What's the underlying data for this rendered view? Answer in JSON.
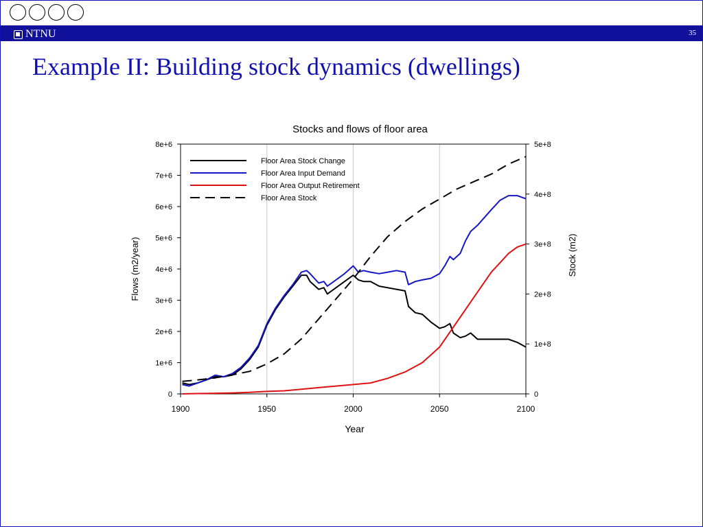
{
  "header": {
    "logo_text": "NTNU",
    "slide_number": "35",
    "title": "Example II: Building stock dynamics (dwellings)"
  },
  "chart_data": {
    "type": "line",
    "title": "Stocks and flows of floor area",
    "xlabel": "Year",
    "ylabel_left": "Flows (m2/year)",
    "ylabel_right": "Stock (m2)",
    "xlim": [
      1900,
      2100
    ],
    "ylim_left": [
      0,
      8000000
    ],
    "ylim_right": [
      0,
      500000000
    ],
    "x_ticks": [
      "1900",
      "1950",
      "2000",
      "2050",
      "2100"
    ],
    "y_left_ticks": [
      "0",
      "1e+6",
      "2e+6",
      "3e+6",
      "4e+6",
      "5e+6",
      "6e+6",
      "7e+6",
      "8e+6"
    ],
    "y_right_ticks": [
      "0",
      "1e+8",
      "2e+8",
      "3e+8",
      "4e+8",
      "5e+8"
    ],
    "grid": "vertical",
    "legend_position": "top-left",
    "series": [
      {
        "name": "Floor Area Stock Change",
        "color": "#000000",
        "dash": "solid",
        "axis": "left",
        "points": [
          [
            1901,
            350000
          ],
          [
            1905,
            300000
          ],
          [
            1910,
            350000
          ],
          [
            1915,
            450000
          ],
          [
            1920,
            550000
          ],
          [
            1925,
            550000
          ],
          [
            1930,
            600000
          ],
          [
            1935,
            800000
          ],
          [
            1940,
            1100000
          ],
          [
            1945,
            1500000
          ],
          [
            1950,
            2200000
          ],
          [
            1955,
            2700000
          ],
          [
            1960,
            3100000
          ],
          [
            1965,
            3450000
          ],
          [
            1970,
            3800000
          ],
          [
            1973,
            3800000
          ],
          [
            1975,
            3600000
          ],
          [
            1980,
            3350000
          ],
          [
            1983,
            3400000
          ],
          [
            1985,
            3200000
          ],
          [
            1990,
            3400000
          ],
          [
            1995,
            3600000
          ],
          [
            2000,
            3800000
          ],
          [
            2003,
            3650000
          ],
          [
            2006,
            3600000
          ],
          [
            2010,
            3600000
          ],
          [
            2015,
            3450000
          ],
          [
            2020,
            3400000
          ],
          [
            2025,
            3350000
          ],
          [
            2030,
            3300000
          ],
          [
            2032,
            2800000
          ],
          [
            2036,
            2600000
          ],
          [
            2040,
            2550000
          ],
          [
            2045,
            2300000
          ],
          [
            2050,
            2100000
          ],
          [
            2053,
            2150000
          ],
          [
            2056,
            2250000
          ],
          [
            2058,
            1950000
          ],
          [
            2062,
            1800000
          ],
          [
            2065,
            1850000
          ],
          [
            2068,
            1950000
          ],
          [
            2072,
            1750000
          ],
          [
            2080,
            1750000
          ],
          [
            2085,
            1750000
          ],
          [
            2090,
            1750000
          ],
          [
            2095,
            1650000
          ],
          [
            2100,
            1500000
          ]
        ]
      },
      {
        "name": "Floor Area Input Demand",
        "color": "#1515c8",
        "dash": "solid",
        "axis": "left",
        "points": [
          [
            1901,
            300000
          ],
          [
            1905,
            250000
          ],
          [
            1910,
            350000
          ],
          [
            1915,
            450000
          ],
          [
            1920,
            600000
          ],
          [
            1925,
            550000
          ],
          [
            1930,
            650000
          ],
          [
            1935,
            850000
          ],
          [
            1940,
            1150000
          ],
          [
            1945,
            1550000
          ],
          [
            1950,
            2250000
          ],
          [
            1955,
            2750000
          ],
          [
            1960,
            3150000
          ],
          [
            1965,
            3500000
          ],
          [
            1970,
            3900000
          ],
          [
            1973,
            3950000
          ],
          [
            1975,
            3850000
          ],
          [
            1980,
            3550000
          ],
          [
            1983,
            3600000
          ],
          [
            1985,
            3450000
          ],
          [
            1990,
            3650000
          ],
          [
            1995,
            3850000
          ],
          [
            2000,
            4100000
          ],
          [
            2003,
            3900000
          ],
          [
            2006,
            3950000
          ],
          [
            2010,
            3900000
          ],
          [
            2015,
            3850000
          ],
          [
            2020,
            3900000
          ],
          [
            2025,
            3950000
          ],
          [
            2030,
            3900000
          ],
          [
            2032,
            3500000
          ],
          [
            2036,
            3600000
          ],
          [
            2040,
            3650000
          ],
          [
            2045,
            3700000
          ],
          [
            2050,
            3850000
          ],
          [
            2053,
            4100000
          ],
          [
            2056,
            4400000
          ],
          [
            2058,
            4300000
          ],
          [
            2062,
            4500000
          ],
          [
            2065,
            4900000
          ],
          [
            2068,
            5200000
          ],
          [
            2072,
            5400000
          ],
          [
            2080,
            5900000
          ],
          [
            2085,
            6200000
          ],
          [
            2090,
            6350000
          ],
          [
            2095,
            6350000
          ],
          [
            2100,
            6250000
          ]
        ]
      },
      {
        "name": "Floor Area Output Retirement",
        "color": "#e01010",
        "dash": "solid",
        "axis": "left",
        "points": [
          [
            1901,
            0
          ],
          [
            1910,
            10000
          ],
          [
            1920,
            20000
          ],
          [
            1930,
            30000
          ],
          [
            1940,
            50000
          ],
          [
            1950,
            80000
          ],
          [
            1960,
            100000
          ],
          [
            1970,
            150000
          ],
          [
            1980,
            200000
          ],
          [
            1990,
            250000
          ],
          [
            2000,
            300000
          ],
          [
            2010,
            350000
          ],
          [
            2020,
            500000
          ],
          [
            2030,
            700000
          ],
          [
            2040,
            1000000
          ],
          [
            2050,
            1500000
          ],
          [
            2060,
            2300000
          ],
          [
            2070,
            3100000
          ],
          [
            2080,
            3900000
          ],
          [
            2090,
            4500000
          ],
          [
            2095,
            4700000
          ],
          [
            2100,
            4800000
          ]
        ]
      },
      {
        "name": "Floor Area Stock",
        "color": "#000000",
        "dash": "dashed",
        "axis": "right",
        "points": [
          [
            1901,
            25000000
          ],
          [
            1910,
            28000000
          ],
          [
            1920,
            32000000
          ],
          [
            1930,
            38000000
          ],
          [
            1940,
            45000000
          ],
          [
            1950,
            60000000
          ],
          [
            1960,
            80000000
          ],
          [
            1970,
            110000000
          ],
          [
            1980,
            150000000
          ],
          [
            1990,
            190000000
          ],
          [
            2000,
            230000000
          ],
          [
            2010,
            275000000
          ],
          [
            2020,
            315000000
          ],
          [
            2030,
            345000000
          ],
          [
            2040,
            370000000
          ],
          [
            2050,
            390000000
          ],
          [
            2060,
            410000000
          ],
          [
            2070,
            425000000
          ],
          [
            2080,
            440000000
          ],
          [
            2090,
            460000000
          ],
          [
            2100,
            475000000
          ]
        ]
      }
    ]
  }
}
